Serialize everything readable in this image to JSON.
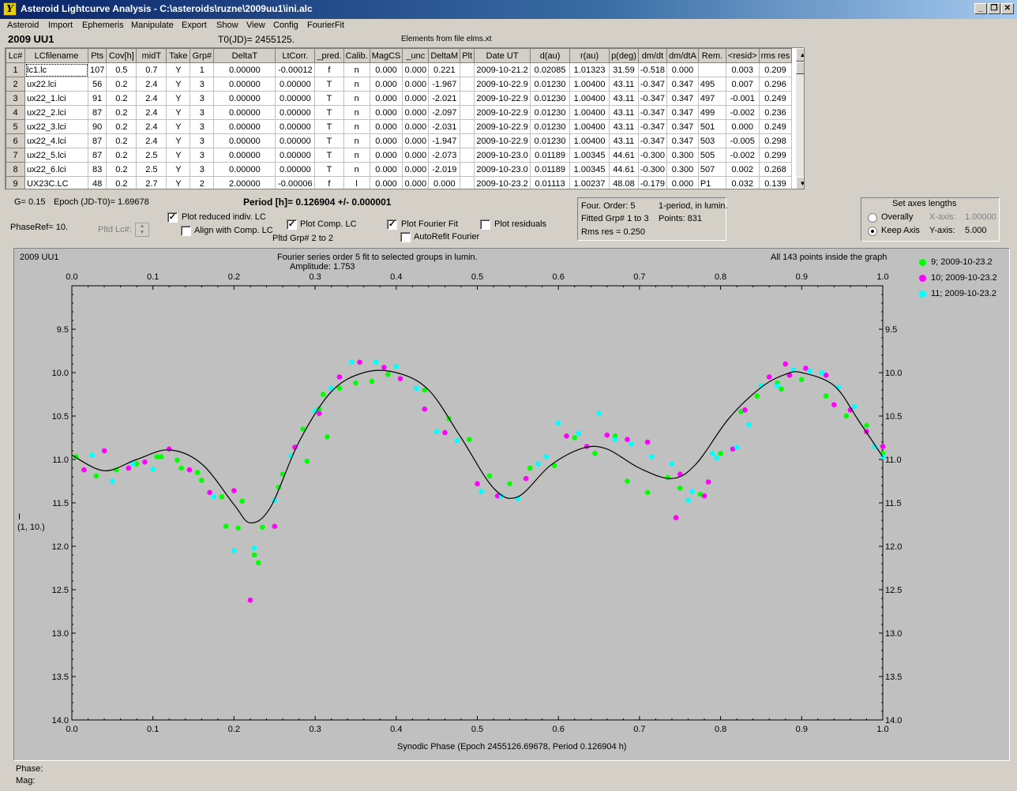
{
  "window": {
    "title": "Asteroid Lightcurve Analysis - C:\\asteroids\\ruzne\\2009uu1\\ini.alc",
    "minimize": "_",
    "restore": "❐",
    "close": "✕",
    "icon": "app-logo-icon"
  },
  "menu": [
    "Asteroid",
    "Import",
    "Ephemeris",
    "Manipulate",
    "Export",
    "Show",
    "View",
    "Config",
    "FourierFit"
  ],
  "header": {
    "asteroid_name": "2009 UU1",
    "t0": "T0(JD)= 2455125.",
    "elements": "Elements from file elms.xt"
  },
  "table": {
    "columns": [
      "Lc#",
      "LCfilename",
      "Pts",
      "Cov[h]",
      "midT",
      "Take",
      "Grp#",
      "DeltaT",
      "LtCorr.",
      "_pred.",
      "Calib.",
      "MagCS",
      "_unc",
      "DeltaM",
      "Plt",
      "Date UT",
      "d(au)",
      "r(au)",
      "p(deg)",
      "dm/dt",
      "dm/dtA",
      "Rem.",
      "<resid>",
      "rms res"
    ],
    "rows": [
      [
        "1",
        "lc1.lc",
        "107",
        "0.5",
        "0.7",
        "Y",
        "1",
        "0.00000",
        "-0.00012",
        "f",
        "n",
        "0.000",
        "0.000",
        "0.221",
        "",
        "2009-10-21.2",
        "0.02085",
        "1.01323",
        "31.59",
        "-0.518",
        "0.000",
        "",
        "0.003",
        "0.209"
      ],
      [
        "2",
        "ux22.lci",
        "56",
        "0.2",
        "2.4",
        "Y",
        "3",
        "0.00000",
        "0.00000",
        "T",
        "n",
        "0.000",
        "0.000",
        "-1.967",
        "",
        "2009-10-22.9",
        "0.01230",
        "1.00400",
        "43.11",
        "-0.347",
        "0.347",
        "495",
        "0.007",
        "0.296"
      ],
      [
        "3",
        "ux22_1.lci",
        "91",
        "0.2",
        "2.4",
        "Y",
        "3",
        "0.00000",
        "0.00000",
        "T",
        "n",
        "0.000",
        "0.000",
        "-2.021",
        "",
        "2009-10-22.9",
        "0.01230",
        "1.00400",
        "43.11",
        "-0.347",
        "0.347",
        "497",
        "-0.001",
        "0.249"
      ],
      [
        "4",
        "ux22_2.lci",
        "87",
        "0.2",
        "2.4",
        "Y",
        "3",
        "0.00000",
        "0.00000",
        "T",
        "n",
        "0.000",
        "0.000",
        "-2.097",
        "",
        "2009-10-22.9",
        "0.01230",
        "1.00400",
        "43.11",
        "-0.347",
        "0.347",
        "499",
        "-0.002",
        "0.236"
      ],
      [
        "5",
        "ux22_3.lci",
        "90",
        "0.2",
        "2.4",
        "Y",
        "3",
        "0.00000",
        "0.00000",
        "T",
        "n",
        "0.000",
        "0.000",
        "-2.031",
        "",
        "2009-10-22.9",
        "0.01230",
        "1.00400",
        "43.11",
        "-0.347",
        "0.347",
        "501",
        "0.000",
        "0.249"
      ],
      [
        "6",
        "ux22_4.lci",
        "87",
        "0.2",
        "2.4",
        "Y",
        "3",
        "0.00000",
        "0.00000",
        "T",
        "n",
        "0.000",
        "0.000",
        "-1.947",
        "",
        "2009-10-22.9",
        "0.01230",
        "1.00400",
        "43.11",
        "-0.347",
        "0.347",
        "503",
        "-0.005",
        "0.298"
      ],
      [
        "7",
        "ux22_5.lci",
        "87",
        "0.2",
        "2.5",
        "Y",
        "3",
        "0.00000",
        "0.00000",
        "T",
        "n",
        "0.000",
        "0.000",
        "-2.073",
        "",
        "2009-10-23.0",
        "0.01189",
        "1.00345",
        "44.61",
        "-0.300",
        "0.300",
        "505",
        "-0.002",
        "0.299"
      ],
      [
        "8",
        "ux22_6.lci",
        "83",
        "0.2",
        "2.5",
        "Y",
        "3",
        "0.00000",
        "0.00000",
        "T",
        "n",
        "0.000",
        "0.000",
        "-2.019",
        "",
        "2009-10-23.0",
        "0.01189",
        "1.00345",
        "44.61",
        "-0.300",
        "0.300",
        "507",
        "0.002",
        "0.268"
      ],
      [
        "9",
        "UX23C.LC",
        "48",
        "0.2",
        "2.7",
        "Y",
        "2",
        "2.00000",
        "-0.00006",
        "f",
        "l",
        "0.000",
        "0.000",
        "0.000",
        "",
        "2009-10-23.2",
        "0.01113",
        "1.00237",
        "48.08",
        "-0.179",
        "0.000",
        "P1",
        "0.032",
        "0.139"
      ]
    ]
  },
  "params": {
    "g": "G= 0.15",
    "epoch": "Epoch (JD-T0)= 1.69678",
    "period": "Period [h]= 0.126904 +/- 0.000001",
    "phase_ref": "PhaseRef= 10.",
    "pltd_lc": "Pltd Lc#:",
    "pltd_grp": "Pltd Grp#  2   to   2"
  },
  "checkboxes": {
    "plot_reduced": {
      "label": "Plot reduced indiv. LC",
      "checked": true
    },
    "align_comp": {
      "label": "Align with Comp. LC",
      "checked": false
    },
    "plot_comp": {
      "label": "Plot Comp. LC",
      "checked": true
    },
    "plot_fourier": {
      "label": "Plot Fourier Fit",
      "checked": true
    },
    "autorefit": {
      "label": "AutoRefit Fourier",
      "checked": false
    },
    "plot_residuals": {
      "label": "Plot residuals",
      "checked": false
    }
  },
  "fit_info": {
    "order": "Four. Order:  5",
    "period_mode": "1-period, in lumin.",
    "fitted": "Fitted Grp# 1 to 3",
    "points": "Points: 831",
    "rms": "Rms res      = 0.250"
  },
  "axes_panel": {
    "title": "Set axes lengths",
    "overally": "Overally",
    "keep_axis": "Keep Axis",
    "x_label": "X-axis:",
    "x_value": "1.00000",
    "y_label": "Y-axis:",
    "y_value": "5.000",
    "selected": "keep_axis"
  },
  "graph": {
    "name": "2009 UU1",
    "subtitle1": "Fourier series order 5 fit to selected groups in lumin.",
    "subtitle2": "Amplitude: 1.753",
    "points_note": "All 143 points inside the graph",
    "ylabel1": "I",
    "ylabel2": "(1, 10.)",
    "xlabel": "Synodic Phase (Epoch 2455126.69678, Period 0.126904 h)",
    "legend": [
      {
        "label": "9; 2009-10-23.2",
        "color": "#00ff00"
      },
      {
        "label": "10; 2009-10-23.2",
        "color": "#ff00ff"
      },
      {
        "label": "11; 2009-10-23.2",
        "color": "#00ffff"
      }
    ]
  },
  "status": {
    "phase": "Phase:",
    "mag": "Mag:"
  },
  "chart_data": {
    "type": "scatter",
    "xlim": [
      0,
      1
    ],
    "ylim": [
      14.0,
      9.0
    ],
    "y_inverted": true,
    "x_ticks": [
      "0.0",
      "0.1",
      "0.2",
      "0.3",
      "0.4",
      "0.5",
      "0.6",
      "0.7",
      "0.8",
      "0.9",
      "1.0"
    ],
    "y_ticks": [
      "9.5",
      "10.0",
      "10.5",
      "11.0",
      "11.5",
      "12.0",
      "12.5",
      "13.0",
      "13.5",
      "14.0"
    ],
    "grid": false,
    "legend_position": "top-right outside",
    "series": [
      {
        "name": "9; 2009-10-23.2",
        "color": "#00ff00",
        "points": [
          [
            0.005,
            10.97
          ],
          [
            0.03,
            11.19
          ],
          [
            0.055,
            11.12
          ],
          [
            0.08,
            11.05
          ],
          [
            0.105,
            10.97
          ],
          [
            0.11,
            10.97
          ],
          [
            0.13,
            11.01
          ],
          [
            0.135,
            11.1
          ],
          [
            0.155,
            11.15
          ],
          [
            0.16,
            11.24
          ],
          [
            0.185,
            11.43
          ],
          [
            0.19,
            11.77
          ],
          [
            0.205,
            11.79
          ],
          [
            0.21,
            11.48
          ],
          [
            0.225,
            12.1
          ],
          [
            0.23,
            12.19
          ],
          [
            0.235,
            11.78
          ],
          [
            0.255,
            11.32
          ],
          [
            0.26,
            11.17
          ],
          [
            0.285,
            10.65
          ],
          [
            0.29,
            11.02
          ],
          [
            0.305,
            10.42
          ],
          [
            0.31,
            10.25
          ],
          [
            0.315,
            10.74
          ],
          [
            0.33,
            10.18
          ],
          [
            0.35,
            10.12
          ],
          [
            0.37,
            10.1
          ],
          [
            0.39,
            10.02
          ],
          [
            0.435,
            10.2
          ],
          [
            0.465,
            10.53
          ],
          [
            0.49,
            10.77
          ],
          [
            0.515,
            11.19
          ],
          [
            0.54,
            11.28
          ],
          [
            0.565,
            11.1
          ],
          [
            0.595,
            11.07
          ],
          [
            0.62,
            10.75
          ],
          [
            0.645,
            10.93
          ],
          [
            0.67,
            10.73
          ],
          [
            0.685,
            11.25
          ],
          [
            0.71,
            11.38
          ],
          [
            0.735,
            11.21
          ],
          [
            0.75,
            11.33
          ],
          [
            0.775,
            11.4
          ],
          [
            0.8,
            10.93
          ],
          [
            0.825,
            10.45
          ],
          [
            0.845,
            10.27
          ],
          [
            0.87,
            10.12
          ],
          [
            0.875,
            10.19
          ],
          [
            0.9,
            10.08
          ],
          [
            0.93,
            10.27
          ],
          [
            0.955,
            10.5
          ],
          [
            0.98,
            10.61
          ],
          [
            1.0,
            10.93
          ]
        ]
      },
      {
        "name": "10; 2009-10-23.2",
        "color": "#ff00ff",
        "points": [
          [
            0.015,
            11.12
          ],
          [
            0.04,
            10.9
          ],
          [
            0.07,
            11.1
          ],
          [
            0.09,
            11.03
          ],
          [
            0.12,
            10.88
          ],
          [
            0.145,
            11.12
          ],
          [
            0.17,
            11.38
          ],
          [
            0.2,
            11.36
          ],
          [
            0.22,
            12.62
          ],
          [
            0.25,
            11.77
          ],
          [
            0.275,
            10.86
          ],
          [
            0.305,
            10.47
          ],
          [
            0.33,
            10.05
          ],
          [
            0.355,
            9.88
          ],
          [
            0.385,
            9.94
          ],
          [
            0.405,
            10.07
          ],
          [
            0.435,
            10.42
          ],
          [
            0.46,
            10.69
          ],
          [
            0.5,
            11.28
          ],
          [
            0.525,
            11.42
          ],
          [
            0.56,
            11.22
          ],
          [
            0.61,
            10.73
          ],
          [
            0.635,
            10.85
          ],
          [
            0.66,
            10.72
          ],
          [
            0.685,
            10.77
          ],
          [
            0.71,
            10.8
          ],
          [
            0.745,
            11.67
          ],
          [
            0.75,
            11.17
          ],
          [
            0.78,
            11.42
          ],
          [
            0.785,
            11.26
          ],
          [
            0.815,
            10.88
          ],
          [
            0.83,
            10.43
          ],
          [
            0.86,
            10.05
          ],
          [
            0.88,
            9.9
          ],
          [
            0.885,
            10.03
          ],
          [
            0.905,
            9.95
          ],
          [
            0.93,
            10.03
          ],
          [
            0.94,
            10.37
          ],
          [
            0.96,
            10.43
          ],
          [
            0.98,
            10.68
          ],
          [
            1.0,
            10.85
          ]
        ]
      },
      {
        "name": "11; 2009-10-23.2",
        "color": "#00ffff",
        "points": [
          [
            0.025,
            10.95
          ],
          [
            0.05,
            11.25
          ],
          [
            0.075,
            11.05
          ],
          [
            0.1,
            11.11
          ],
          [
            0.175,
            11.43
          ],
          [
            0.2,
            12.05
          ],
          [
            0.225,
            12.02
          ],
          [
            0.25,
            11.47
          ],
          [
            0.27,
            10.96
          ],
          [
            0.3,
            10.44
          ],
          [
            0.32,
            10.18
          ],
          [
            0.345,
            9.88
          ],
          [
            0.375,
            9.88
          ],
          [
            0.4,
            9.93
          ],
          [
            0.425,
            10.18
          ],
          [
            0.45,
            10.68
          ],
          [
            0.475,
            10.78
          ],
          [
            0.505,
            11.37
          ],
          [
            0.53,
            11.42
          ],
          [
            0.55,
            11.45
          ],
          [
            0.575,
            11.05
          ],
          [
            0.585,
            10.97
          ],
          [
            0.6,
            10.58
          ],
          [
            0.625,
            10.7
          ],
          [
            0.65,
            10.47
          ],
          [
            0.67,
            10.77
          ],
          [
            0.69,
            10.82
          ],
          [
            0.715,
            10.97
          ],
          [
            0.74,
            11.05
          ],
          [
            0.76,
            11.47
          ],
          [
            0.765,
            11.37
          ],
          [
            0.79,
            10.93
          ],
          [
            0.795,
            10.98
          ],
          [
            0.82,
            10.86
          ],
          [
            0.835,
            10.6
          ],
          [
            0.85,
            10.15
          ],
          [
            0.87,
            10.15
          ],
          [
            0.89,
            9.97
          ],
          [
            0.91,
            9.98
          ],
          [
            0.925,
            10.0
          ],
          [
            0.945,
            10.17
          ],
          [
            0.965,
            10.39
          ],
          [
            0.99,
            10.85
          ],
          [
            1.0,
            10.97
          ]
        ]
      },
      {
        "name": "",
        "type": "line",
        "color": "#000000",
        "points": [
          [
            0.0,
            10.95
          ],
          [
            0.04,
            11.13
          ],
          [
            0.08,
            11.0
          ],
          [
            0.12,
            10.89
          ],
          [
            0.16,
            11.05
          ],
          [
            0.2,
            11.52
          ],
          [
            0.22,
            11.73
          ],
          [
            0.245,
            11.55
          ],
          [
            0.28,
            10.8
          ],
          [
            0.32,
            10.22
          ],
          [
            0.36,
            10.0
          ],
          [
            0.4,
            10.0
          ],
          [
            0.44,
            10.2
          ],
          [
            0.48,
            10.75
          ],
          [
            0.52,
            11.33
          ],
          [
            0.55,
            11.43
          ],
          [
            0.59,
            11.07
          ],
          [
            0.63,
            10.87
          ],
          [
            0.66,
            10.88
          ],
          [
            0.7,
            11.1
          ],
          [
            0.74,
            11.22
          ],
          [
            0.77,
            11.05
          ],
          [
            0.81,
            10.53
          ],
          [
            0.85,
            10.17
          ],
          [
            0.88,
            10.02
          ],
          [
            0.9,
            10.0
          ],
          [
            0.94,
            10.15
          ],
          [
            0.97,
            10.55
          ],
          [
            1.0,
            10.97
          ]
        ]
      }
    ]
  }
}
